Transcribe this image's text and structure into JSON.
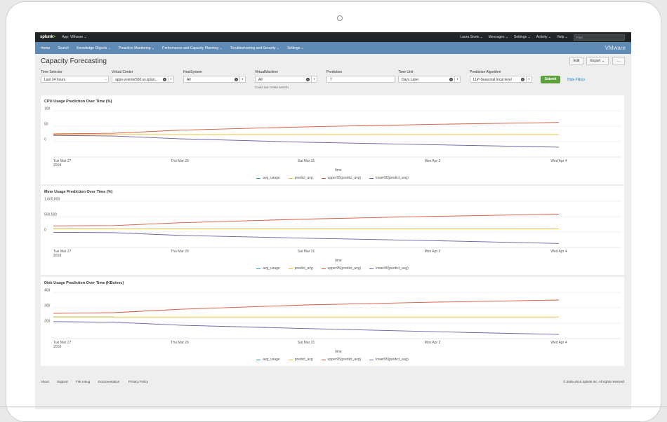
{
  "topbar": {
    "logo": "splunk",
    "app_selector": "App: VMware ⌄",
    "items": [
      "Laura Snow ⌄",
      "Messages ⌄",
      "Settings ⌄",
      "Activity ⌄",
      "Help ⌄"
    ],
    "find_placeholder": "Find"
  },
  "appnav": {
    "items": [
      "Home",
      "Search",
      "Knowledge Objects ⌄",
      "Proactive Monitoring ⌄",
      "Performance and Capacity Planning ⌄",
      "Troubleshooting and Security ⌄",
      "Settings ⌄"
    ],
    "brand": "VMware"
  },
  "page": {
    "title": "Capacity Forecasting",
    "edit_label": "Edit",
    "export_label": "Export ⌄",
    "more_label": "..."
  },
  "filters": {
    "time_selector": {
      "label": "Time Selector",
      "value": "Last 24 hours"
    },
    "virtual_center": {
      "label": "Virtual Center",
      "value": "apps-vcenter500.sv.splun..."
    },
    "host_system": {
      "label": "HostSystem",
      "value": "All"
    },
    "virtual_machine": {
      "label": "VirtualMachine",
      "value": "All",
      "hint": "Could not create search."
    },
    "prediction": {
      "label": "Prediction",
      "value": "7"
    },
    "time_unit": {
      "label": "Time Unit",
      "value": "Days Later"
    },
    "algorithm": {
      "label": "Prediction Algorithm",
      "value": "LLP-Seasonal local level"
    },
    "submit_label": "Submit",
    "hide_filters_label": "Hide Filters"
  },
  "legend_items": [
    "avg_usage",
    "predict_avg",
    "upper95(predict_avg)",
    "lower95(predict_avg)"
  ],
  "colors": {
    "avg_usage": "#1e93c6",
    "predict_avg": "#f2b827",
    "upper95": "#d6563c",
    "lower95": "#6a5c9e"
  },
  "chart_data": [
    {
      "type": "line",
      "title": "CPU Usage Prediction Over Time (%)",
      "xlabel": "time",
      "x_ticks": [
        "Tue Mar 27\n2018",
        "Thu Mar 29",
        "Sat Mar 31",
        "Mon Apr 2",
        "Wed Apr 4"
      ],
      "y_ticks": [
        "100",
        "50",
        "0"
      ],
      "ylim": [
        -50,
        100
      ],
      "x": [
        0,
        1,
        2,
        3,
        4,
        5,
        6,
        7,
        8,
        9,
        10,
        11,
        12,
        13,
        14,
        15,
        16,
        17,
        18,
        19,
        20,
        21,
        22,
        23,
        24,
        25,
        26,
        27,
        28,
        29,
        30,
        31,
        32,
        33,
        34,
        35,
        36,
        37,
        38,
        39,
        40,
        41,
        42,
        43,
        44,
        45,
        46,
        47,
        48,
        49,
        50,
        51,
        52,
        53,
        54,
        55,
        56,
        57,
        58,
        59,
        60,
        61,
        62,
        63,
        64,
        65,
        66,
        67,
        68,
        69,
        70,
        71,
        72,
        73,
        74,
        75,
        76,
        77,
        78,
        79,
        80,
        81,
        82,
        83,
        84,
        85,
        86,
        87,
        88,
        89,
        90,
        91,
        92,
        93,
        94,
        95,
        96,
        97,
        98,
        99,
        100
      ],
      "series": [
        {
          "name": "avg_usage",
          "points": [
            [
              0,
              23
            ],
            [
              12,
              23
            ]
          ]
        },
        {
          "name": "predict_avg",
          "points": [
            [
              0,
              23
            ],
            [
              100,
              23
            ]
          ]
        },
        {
          "name": "upper95(predict_avg)",
          "points": [
            [
              0,
              25
            ],
            [
              12,
              27
            ],
            [
              25,
              37
            ],
            [
              50,
              48
            ],
            [
              75,
              56
            ],
            [
              100,
              62
            ]
          ]
        },
        {
          "name": "lower95(predict_avg)",
          "points": [
            [
              0,
              20
            ],
            [
              12,
              18
            ],
            [
              25,
              9
            ],
            [
              50,
              -2
            ],
            [
              75,
              -10
            ],
            [
              100,
              -18
            ]
          ]
        }
      ]
    },
    {
      "type": "line",
      "title": "Mem Usage Prediction Over Time (%)",
      "xlabel": "time",
      "x_ticks": [
        "Tue Mar 27\n2018",
        "Thu Mar 29",
        "Sat Mar 31",
        "Mon Apr 2",
        "Wed Apr 4"
      ],
      "y_ticks": [
        "1,000,000",
        "500,000",
        "0"
      ],
      "ylim": [
        -500000,
        1000000
      ],
      "series": [
        {
          "name": "avg_usage",
          "points": [
            [
              0,
              100000
            ],
            [
              12,
              100000
            ]
          ]
        },
        {
          "name": "predict_avg",
          "points": [
            [
              0,
              100000
            ],
            [
              100,
              100000
            ]
          ]
        },
        {
          "name": "upper95(predict_avg)",
          "points": [
            [
              0,
              200000
            ],
            [
              12,
              210000
            ],
            [
              25,
              300000
            ],
            [
              50,
              420000
            ],
            [
              75,
              510000
            ],
            [
              100,
              580000
            ]
          ]
        },
        {
          "name": "lower95(predict_avg)",
          "points": [
            [
              0,
              -10000
            ],
            [
              12,
              -20000
            ],
            [
              25,
              -110000
            ],
            [
              50,
              -200000
            ],
            [
              75,
              -280000
            ],
            [
              100,
              -370000
            ]
          ]
        }
      ]
    },
    {
      "type": "line",
      "title": "Disk Usage Prediction Over Time (KBs/sec)",
      "xlabel": "time",
      "x_ticks": [
        "Tue Mar 27\n2018",
        "Thu Mar 29",
        "Sat Mar 31",
        "Mon Apr 2",
        "Wed Apr 4"
      ],
      "y_ticks": [
        "400",
        "300",
        "200"
      ],
      "ylim": [
        100,
        400
      ],
      "series": [
        {
          "name": "avg_usage",
          "points": [
            [
              0,
              240
            ],
            [
              12,
              240
            ]
          ]
        },
        {
          "name": "predict_avg",
          "points": [
            [
              0,
              240
            ],
            [
              100,
              240
            ]
          ]
        },
        {
          "name": "upper95(predict_avg)",
          "points": [
            [
              0,
              263
            ],
            [
              12,
              268
            ],
            [
              25,
              290
            ],
            [
              50,
              318
            ],
            [
              75,
              336
            ],
            [
              100,
              350
            ]
          ]
        },
        {
          "name": "lower95(predict_avg)",
          "points": [
            [
              0,
              210
            ],
            [
              12,
              206
            ],
            [
              25,
              187
            ],
            [
              50,
              165
            ],
            [
              75,
              145
            ],
            [
              100,
              127
            ]
          ]
        }
      ]
    }
  ],
  "footer": {
    "links": [
      "About",
      "Support",
      "File a Bug",
      "Documentation",
      "Privacy Policy"
    ],
    "copyright": "© 2005-2018 Splunk Inc. All rights reserved."
  }
}
